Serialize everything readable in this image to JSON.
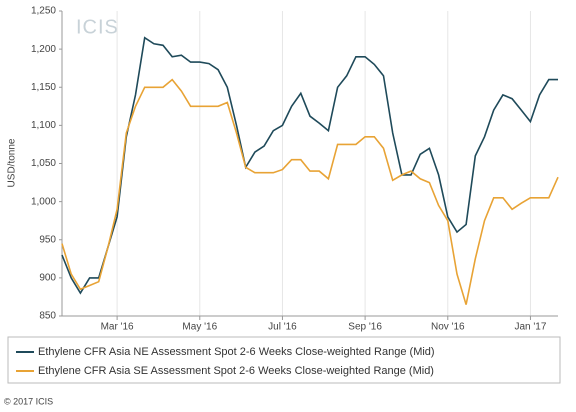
{
  "chart_data": {
    "type": "line",
    "watermark": "ICIS",
    "y_label": "USD/tonne",
    "footer": "© 2017 ICIS",
    "categories": [
      null,
      null,
      null,
      null,
      null,
      null,
      "Mar '16",
      null,
      null,
      null,
      null,
      null,
      null,
      null,
      null,
      "May '16",
      null,
      null,
      null,
      null,
      null,
      null,
      null,
      null,
      "Jul '16",
      null,
      null,
      null,
      null,
      null,
      null,
      null,
      null,
      "Sep '16",
      null,
      null,
      null,
      null,
      null,
      null,
      null,
      null,
      "Nov '16",
      null,
      null,
      null,
      null,
      null,
      null,
      null,
      null,
      "Jan '17",
      null,
      null,
      null
    ],
    "series": [
      {
        "name": "Ethylene CFR Asia NE Assessment Spot 2-6 Weeks Close-weighted Range (Mid)",
        "color": "#1f4a5a",
        "values": [
          930,
          900,
          880,
          900,
          900,
          940,
          980,
          1085,
          1140,
          1215,
          1207,
          1205,
          1190,
          1192,
          1183,
          1183,
          1181,
          1173,
          1150,
          1100,
          1045,
          1065,
          1073,
          1093,
          1100,
          1125,
          1142,
          1112,
          1103,
          1093,
          1150,
          1165,
          1190,
          1190,
          1180,
          1165,
          1090,
          1035,
          1035,
          1062,
          1070,
          1035,
          980,
          960,
          970,
          1060,
          1085,
          1120,
          1140,
          1135,
          1120,
          1105,
          1140,
          1160,
          1160
        ]
      },
      {
        "name": "Ethylene CFR Asia SE Assessment Spot 2-6 Weeks Close-weighted Range (Mid)",
        "color": "#e8a335",
        "values": [
          945,
          905,
          885,
          890,
          895,
          940,
          990,
          1090,
          1125,
          1150,
          1150,
          1150,
          1160,
          1145,
          1125,
          1125,
          1125,
          1125,
          1130,
          1090,
          1045,
          1038,
          1038,
          1038,
          1042,
          1055,
          1055,
          1040,
          1040,
          1030,
          1075,
          1075,
          1075,
          1085,
          1085,
          1070,
          1028,
          1035,
          1040,
          1030,
          1025,
          995,
          975,
          905,
          865,
          925,
          975,
          1005,
          1005,
          990,
          998,
          1005,
          1005,
          1005,
          1032
        ]
      }
    ],
    "ylim": [
      850,
      1250
    ],
    "yticks": [
      850,
      900,
      950,
      {
        "value": 1000,
        "label": "1,000"
      },
      {
        "value": 1050,
        "label": "1,050"
      },
      {
        "value": 1100,
        "label": "1,100"
      },
      {
        "value": 1150,
        "label": "1,150"
      },
      {
        "value": 1200,
        "label": "1,200"
      },
      {
        "value": 1250,
        "label": "1,250"
      }
    ],
    "grid": "x"
  }
}
